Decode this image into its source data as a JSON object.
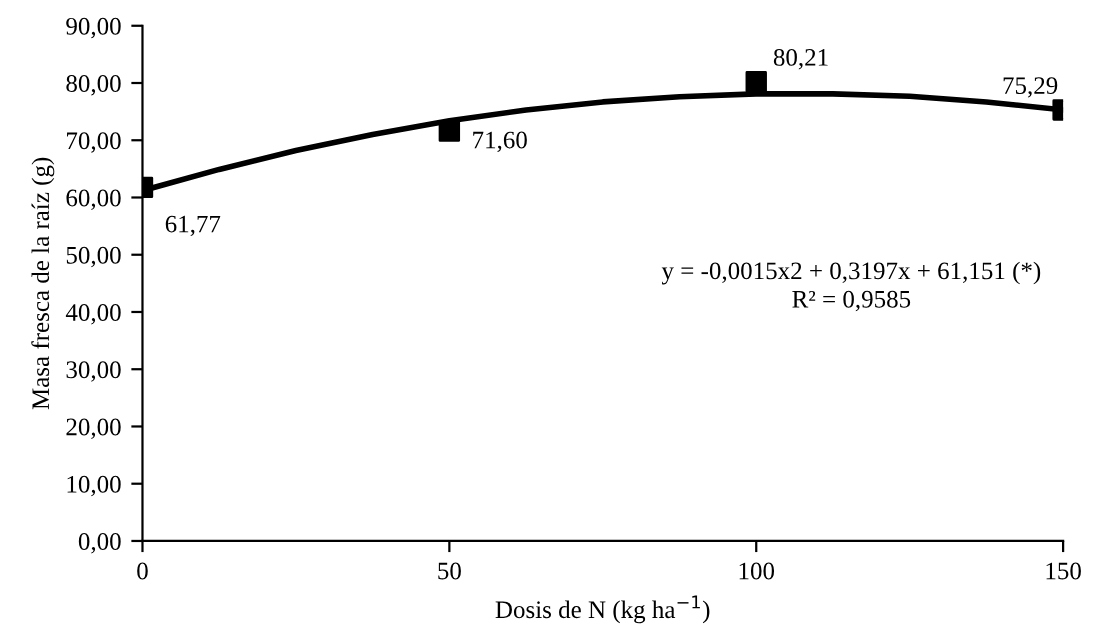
{
  "chart_data": {
    "type": "scatter",
    "xlabel": "Dosis de N (kg ha$^{−1}$)",
    "ylabel": "Masa fresca de la raíz (g)",
    "xlim": [
      0,
      150
    ],
    "xticks": [
      0,
      50,
      100,
      150
    ],
    "ylim": [
      0,
      90
    ],
    "yticks": [
      {
        "value": 0,
        "label": "0,00"
      },
      {
        "value": 10,
        "label": "10,00"
      },
      {
        "value": 20,
        "label": "20,00"
      },
      {
        "value": 30,
        "label": "30,00"
      },
      {
        "value": 40,
        "label": "40,00"
      },
      {
        "value": 50,
        "label": "50,00"
      },
      {
        "value": 60,
        "label": "60,00"
      },
      {
        "value": 70,
        "label": "70,00"
      },
      {
        "value": 80,
        "label": "80,00"
      },
      {
        "value": 90,
        "label": "90,00"
      }
    ],
    "grid": false,
    "legend": false,
    "series": [
      {
        "color": "#000000",
        "marker": "square",
        "x": [
          0,
          50,
          100,
          150
        ],
        "values": [
          61.77,
          71.6,
          80.21,
          75.29
        ],
        "value_labels": [
          "61,77",
          "71,60",
          "80,21",
          "75,29"
        ]
      },
      {
        "type": "line",
        "color": "#000000",
        "line_style": "solid",
        "x": [
          0,
          12.5,
          25,
          37.5,
          50,
          62.5,
          75,
          87.5,
          100,
          112.5,
          125,
          137.5,
          150
        ],
        "values": [
          61.2,
          64.9,
          68.2,
          71.0,
          73.4,
          75.3,
          76.7,
          77.6,
          78.1,
          78.1,
          77.7,
          76.7,
          75.3
        ]
      }
    ],
    "annotations": [
      "y = -0,0015x2 + 0,3197x + 61,151 (*)",
      "R² = 0,9585"
    ]
  }
}
